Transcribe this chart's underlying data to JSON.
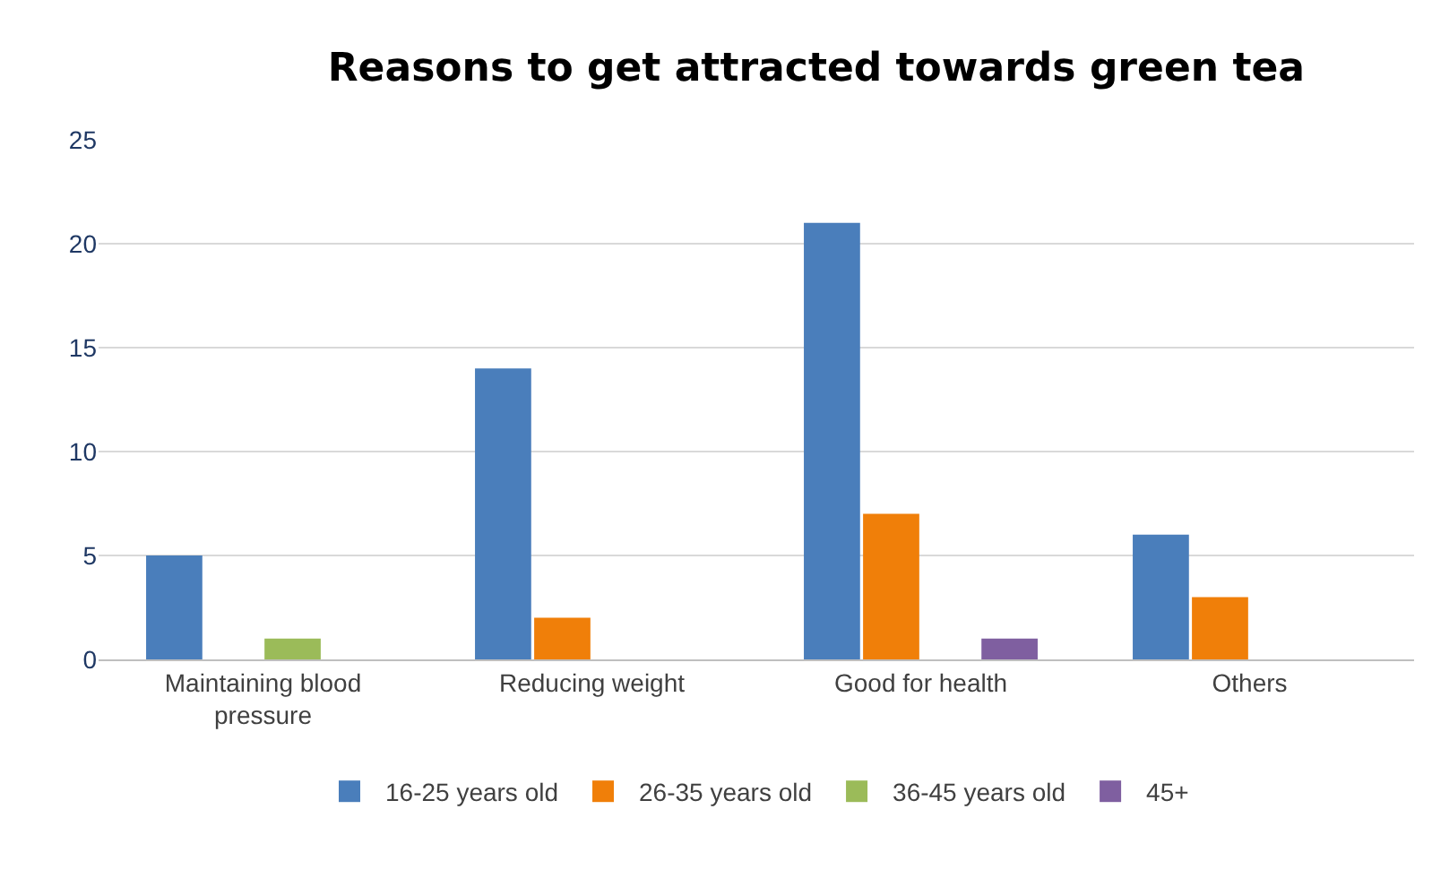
{
  "chart_data": {
    "type": "bar",
    "title": "Reasons to get attracted towards green tea",
    "categories": [
      "Maintaining blood pressure",
      "Reducing weight",
      "Good for health",
      "Others"
    ],
    "series": [
      {
        "name": "16-25 years old",
        "color": "#4a7ebb",
        "values": [
          5,
          14,
          21,
          6
        ]
      },
      {
        "name": "26-35 years old",
        "color": "#f07f09",
        "values": [
          0,
          2,
          7,
          3
        ]
      },
      {
        "name": "36-45 years old",
        "color": "#9bbb59",
        "values": [
          1,
          0,
          0,
          0
        ]
      },
      {
        "name": "45+",
        "color": "#7f5fa0",
        "values": [
          0,
          0,
          1,
          0
        ]
      }
    ],
    "ylim": [
      0,
      25
    ],
    "yticks": [
      0,
      5,
      10,
      15,
      20,
      25
    ],
    "grid": "y",
    "legend": "bottom"
  }
}
